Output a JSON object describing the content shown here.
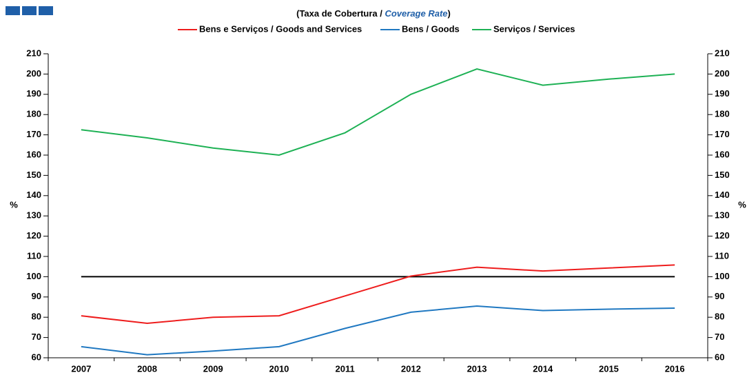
{
  "chart_data": {
    "type": "line",
    "title_parts": [
      "(Taxa  de Cobertura  /  ",
      "Coverage Rate",
      ")"
    ],
    "ylabel": "%",
    "y2label": "%",
    "categories": [
      "2007",
      "2008",
      "2009",
      "2010",
      "2011",
      "2012",
      "2013",
      "2014",
      "2015",
      "2016"
    ],
    "series": [
      {
        "name": "Bens e Serviços / Goods and Services",
        "color": "#ee1c1c",
        "values": [
          80.7,
          77,
          80,
          80.7,
          90.5,
          100.3,
          104.7,
          102.8,
          104.3,
          105.8
        ]
      },
      {
        "name": "Bens / Goods",
        "color": "#1f78c1",
        "values": [
          65.5,
          61.5,
          63.3,
          65.5,
          74.5,
          82.5,
          85.5,
          83.3,
          84,
          84.5
        ]
      },
      {
        "name": "Serviços / Services",
        "color": "#1db154",
        "values": [
          172.5,
          168.5,
          163.5,
          160,
          171,
          190,
          202.5,
          194.5,
          197.5,
          200
        ]
      }
    ],
    "hline": 100,
    "ylim": [
      60,
      210
    ],
    "yticks": [
      60,
      70,
      80,
      90,
      100,
      110,
      120,
      130,
      140,
      150,
      160,
      170,
      180,
      190,
      200,
      210
    ],
    "y2lim": [
      60,
      210
    ],
    "y2ticks": [
      60,
      70,
      80,
      90,
      100,
      110,
      120,
      130,
      140,
      150,
      160,
      170,
      180,
      190,
      200,
      210
    ]
  }
}
